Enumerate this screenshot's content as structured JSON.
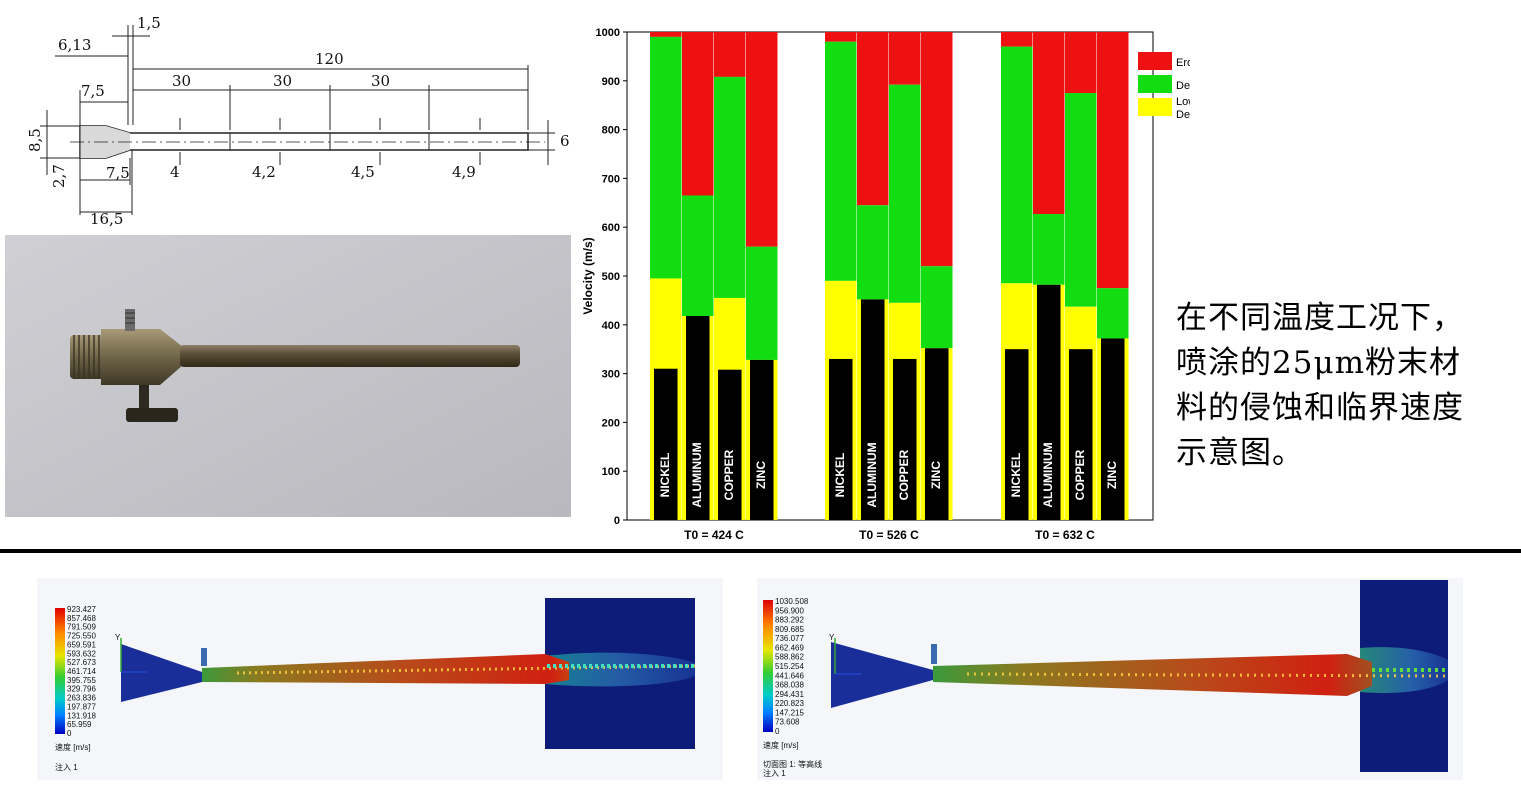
{
  "drawing": {
    "dims": {
      "d_1_5": "1,5",
      "d_6_13": "6,13",
      "d_120": "120",
      "d_7_5_top": "7,5",
      "d_30_a": "30",
      "d_30_b": "30",
      "d_30_c": "30",
      "d_8_5": "8,5",
      "d_6": "6",
      "d_2_7": "2,7",
      "d_7_5_bot": "7,5",
      "d_4": "4",
      "d_4_2": "4,2",
      "d_4_5": "4,5",
      "d_4_9": "4,9",
      "d_16_5": "16,5"
    }
  },
  "caption": "在不同温度工况下，喷涂的25μm粉末材料的侵蚀和临界速度示意图。",
  "chart_data": {
    "type": "bar",
    "ylabel": "Velocity (m/s)",
    "ylim": [
      0,
      1000
    ],
    "yticks": [
      "0",
      "100",
      "200",
      "300",
      "400",
      "500",
      "600",
      "700",
      "800",
      "900",
      "1000"
    ],
    "legend": {
      "placement": "top-right",
      "entries": [
        {
          "key": "erosion",
          "label": "Erosion",
          "color": "#ee1111"
        },
        {
          "key": "deposition",
          "label": "Deposition",
          "color": "#11dd11"
        },
        {
          "key": "low",
          "label": "Low / Not Deposition",
          "color": "#ffff00"
        }
      ]
    },
    "groups": [
      {
        "label": "T0 = 424 C",
        "bars": [
          {
            "material": "NICKEL",
            "black": 310,
            "low_top": 495,
            "dep_top": 990
          },
          {
            "material": "ALUMINUM",
            "black": 418,
            "low_top": 418,
            "dep_top": 665
          },
          {
            "material": "COPPER",
            "black": 308,
            "low_top": 455,
            "dep_top": 908
          },
          {
            "material": "ZINC",
            "black": 328,
            "low_top": 328,
            "dep_top": 560
          }
        ]
      },
      {
        "label": "T0 = 526 C",
        "bars": [
          {
            "material": "NICKEL",
            "black": 330,
            "low_top": 490,
            "dep_top": 980
          },
          {
            "material": "ALUMINUM",
            "black": 452,
            "low_top": 452,
            "dep_top": 645
          },
          {
            "material": "COPPER",
            "black": 330,
            "low_top": 445,
            "dep_top": 892
          },
          {
            "material": "ZINC",
            "black": 352,
            "low_top": 352,
            "dep_top": 520
          }
        ]
      },
      {
        "label": "T0 = 632 C",
        "bars": [
          {
            "material": "NICKEL",
            "black": 350,
            "low_top": 485,
            "dep_top": 970
          },
          {
            "material": "ALUMINUM",
            "black": 482,
            "low_top": 482,
            "dep_top": 627
          },
          {
            "material": "COPPER",
            "black": 350,
            "low_top": 437,
            "dep_top": 875
          },
          {
            "material": "ZINC",
            "black": 372,
            "low_top": 372,
            "dep_top": 475
          }
        ]
      }
    ]
  },
  "sim1": {
    "legend_values": [
      "923.427",
      "857.468",
      "791.509",
      "725.550",
      "659.591",
      "593.632",
      "527.673",
      "461.714",
      "395.755",
      "329.796",
      "263.836",
      "197.877",
      "131.918",
      "65.959",
      "0"
    ],
    "unit_label": "速度 [m/s]",
    "footer": "注入 1",
    "axis_label": "Y"
  },
  "sim2": {
    "legend_values": [
      "1030.508",
      "956.900",
      "883.292",
      "809.685",
      "736.077",
      "662.469",
      "588.862",
      "515.254",
      "441.646",
      "368.038",
      "294.431",
      "220.823",
      "147.215",
      "73.608",
      "0"
    ],
    "unit_label": "速度 [m/s]",
    "footer_1": "切面图 1: 等高线",
    "footer_2": "注入 1",
    "axis_label": "Y"
  }
}
